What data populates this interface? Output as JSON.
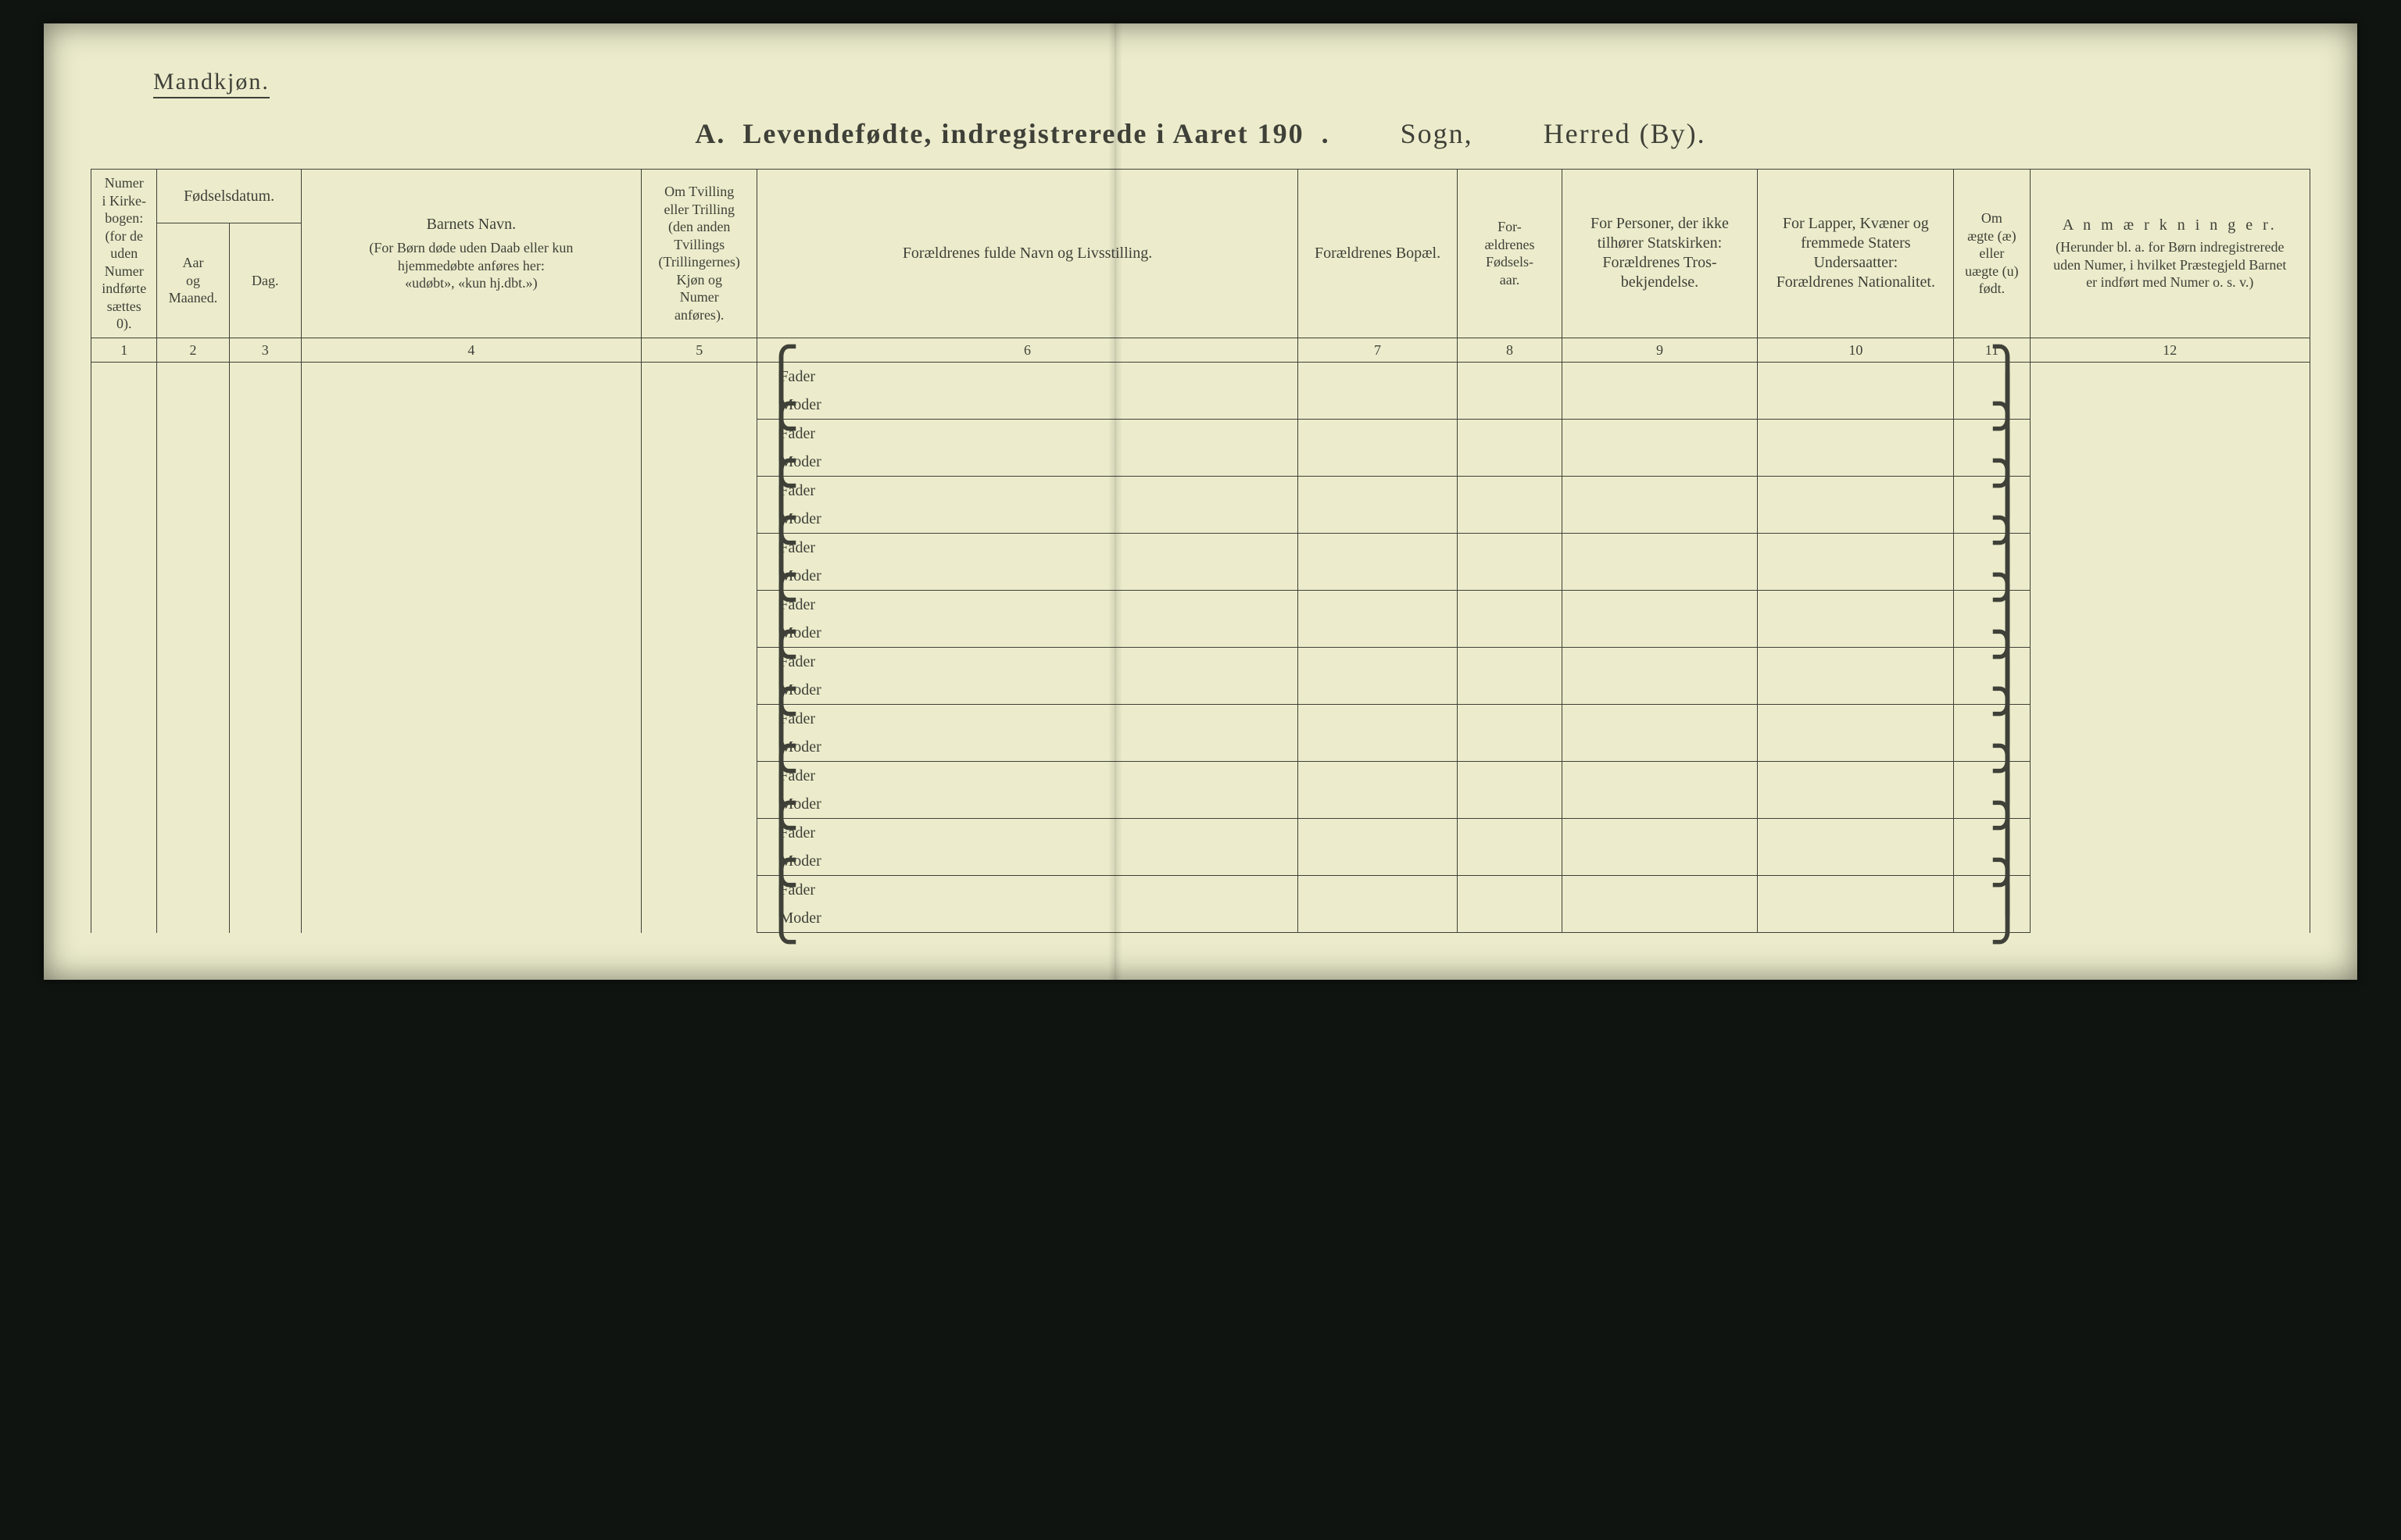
{
  "page": {
    "gender_label": "Mandkjøn.",
    "title_main": "A.  Levendefødte, indregistrerede i Aaret 190  .",
    "title_sogn": "Sogn,",
    "title_herred": "Herred (By).",
    "background_color": "#ececcc",
    "ink_color": "#3f4038"
  },
  "columns": {
    "widths_pct": [
      3.3,
      3.6,
      3.6,
      17.0,
      5.8,
      27.0,
      8.0,
      5.2,
      9.8,
      9.8,
      3.8,
      14.0
    ],
    "col1": "Numer\ni Kirke-\nbogen:\n(for de\nuden\nNumer\nindførte\nsættes\n0).",
    "col23_group": "Fødselsdatum.",
    "col2": "Aar\nog\nMaaned.",
    "col3": "Dag.",
    "col4_main": "Barnets Navn.",
    "col4_sub": "(For Børn døde uden Daab eller kun\nhjemmedøbte anføres her:\n«udøbt», «kun hj.dbt.»)",
    "col5": "Om Tvilling\neller Trilling\n(den anden\nTvillings\n(Trillingernes)\nKjøn og\nNumer\nanføres).",
    "col6": "Forældrenes fulde Navn og Livsstilling.",
    "col7": "Forældrenes Bopæl.",
    "col8": "For-\nældrenes\nFødsels-\naar.",
    "col9": "For Personer, der ikke\ntilhører Statskirken:\nForældrenes Tros-\nbekjendelse.",
    "col10": "For Lapper, Kvæner og\nfremmede Staters\nUndersaatter:\nForældrenes Nationalitet.",
    "col11": "Om\nægte (æ)\neller\nuægte (u)\nfødt.",
    "col12_main": "A n m æ r k n i n g e r.",
    "col12_sub": "(Herunder bl. a. for Børn indregistrerede\nuden Numer, i hvilket Præstegjeld Barnet\ner indført med Numer o. s. v.)",
    "numbers": [
      "1",
      "2",
      "3",
      "4",
      "5",
      "6",
      "7",
      "8",
      "9",
      "10",
      "11",
      "12"
    ]
  },
  "row_labels": {
    "fader": "Fader",
    "moder": "Moder"
  },
  "row_count": 10
}
